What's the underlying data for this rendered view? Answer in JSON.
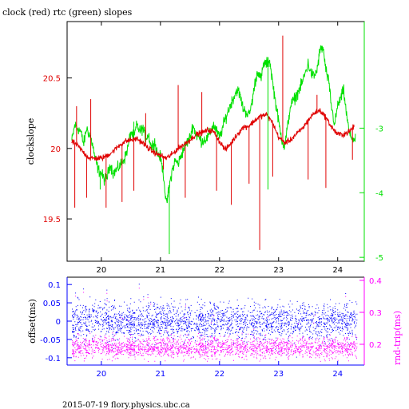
{
  "title": "clock (red) rtc (green) slopes",
  "footer": "2015-07-19 flory.physics.ubc.ca",
  "colors": {
    "clock": "#e00000",
    "rtc": "#00e000",
    "offset": "#0000ff",
    "rndtrip": "#ff00ff",
    "frame": "#000000"
  },
  "chart_data": [
    {
      "type": "line",
      "ylabel": "clockslope",
      "right_axis": "rtc",
      "xlim": [
        19.42,
        24.45
      ],
      "ylim": [
        19.2,
        20.9
      ],
      "y2lim": [
        -5.06,
        -1.35
      ],
      "x_ticks": [
        "20",
        "21",
        "22",
        "23",
        "24"
      ],
      "y_ticks": [
        "19.5",
        "20",
        "20.5"
      ],
      "y2_ticks": [
        "-5",
        "-4",
        "-3"
      ],
      "series": [
        {
          "name": "clock",
          "axis": "left",
          "points": [
            [
              19.5,
              20.05
            ],
            [
              19.6,
              20.02
            ],
            [
              19.7,
              19.97
            ],
            [
              19.8,
              19.93
            ],
            [
              19.9,
              19.93
            ],
            [
              20.0,
              19.93
            ],
            [
              20.1,
              19.95
            ],
            [
              20.2,
              19.98
            ],
            [
              20.3,
              20.02
            ],
            [
              20.4,
              20.05
            ],
            [
              20.5,
              20.06
            ],
            [
              20.6,
              20.07
            ],
            [
              20.7,
              20.04
            ],
            [
              20.8,
              20.0
            ],
            [
              20.9,
              19.97
            ],
            [
              21.0,
              19.95
            ],
            [
              21.1,
              19.93
            ],
            [
              21.2,
              19.96
            ],
            [
              21.3,
              20.0
            ],
            [
              21.4,
              20.03
            ],
            [
              21.5,
              20.06
            ],
            [
              21.6,
              20.1
            ],
            [
              21.7,
              20.11
            ],
            [
              21.8,
              20.13
            ],
            [
              21.9,
              20.12
            ],
            [
              22.0,
              20.05
            ],
            [
              22.1,
              19.99
            ],
            [
              22.2,
              20.04
            ],
            [
              22.3,
              20.1
            ],
            [
              22.4,
              20.15
            ],
            [
              22.5,
              20.16
            ],
            [
              22.6,
              20.2
            ],
            [
              22.7,
              20.23
            ],
            [
              22.8,
              20.24
            ],
            [
              22.9,
              20.18
            ],
            [
              23.0,
              20.08
            ],
            [
              23.1,
              20.04
            ],
            [
              23.2,
              20.06
            ],
            [
              23.3,
              20.1
            ],
            [
              23.4,
              20.14
            ],
            [
              23.5,
              20.2
            ],
            [
              23.6,
              20.25
            ],
            [
              23.7,
              20.27
            ],
            [
              23.8,
              20.22
            ],
            [
              23.9,
              20.15
            ],
            [
              24.0,
              20.1
            ],
            [
              24.1,
              20.1
            ],
            [
              24.2,
              20.12
            ],
            [
              24.28,
              20.16
            ]
          ]
        },
        {
          "name": "rtc",
          "axis": "right",
          "points": [
            [
              19.5,
              -3.2
            ],
            [
              19.55,
              -2.95
            ],
            [
              19.6,
              -3.0
            ],
            [
              19.65,
              -3.05
            ],
            [
              19.7,
              -3.25
            ],
            [
              19.75,
              -3.0
            ],
            [
              19.8,
              -3.1
            ],
            [
              19.85,
              -3.25
            ],
            [
              19.9,
              -3.5
            ],
            [
              19.95,
              -3.65
            ],
            [
              20.0,
              -3.7
            ],
            [
              20.05,
              -3.8
            ],
            [
              20.1,
              -3.75
            ],
            [
              20.15,
              -3.55
            ],
            [
              20.2,
              -3.7
            ],
            [
              20.3,
              -3.6
            ],
            [
              20.4,
              -3.45
            ],
            [
              20.45,
              -3.3
            ],
            [
              20.5,
              -3.05
            ],
            [
              20.55,
              -3.15
            ],
            [
              20.6,
              -2.95
            ],
            [
              20.65,
              -3.05
            ],
            [
              20.7,
              -3.0
            ],
            [
              20.75,
              -3.15
            ],
            [
              20.8,
              -3.1
            ],
            [
              20.85,
              -3.3
            ],
            [
              20.9,
              -3.2
            ],
            [
              20.95,
              -3.4
            ],
            [
              21.0,
              -3.45
            ],
            [
              21.05,
              -3.7
            ],
            [
              21.1,
              -4.2
            ],
            [
              21.15,
              -3.9
            ],
            [
              21.2,
              -3.65
            ],
            [
              21.25,
              -3.5
            ],
            [
              21.3,
              -3.55
            ],
            [
              21.4,
              -3.3
            ],
            [
              21.5,
              -3.15
            ],
            [
              21.55,
              -2.95
            ],
            [
              21.6,
              -3.1
            ],
            [
              21.7,
              -3.2
            ],
            [
              21.8,
              -3.15
            ],
            [
              21.9,
              -2.95
            ],
            [
              22.0,
              -3.15
            ],
            [
              22.1,
              -2.85
            ],
            [
              22.2,
              -2.6
            ],
            [
              22.3,
              -2.4
            ],
            [
              22.35,
              -2.5
            ],
            [
              22.4,
              -2.7
            ],
            [
              22.5,
              -2.8
            ],
            [
              22.55,
              -2.6
            ],
            [
              22.6,
              -2.3
            ],
            [
              22.65,
              -2.1
            ],
            [
              22.7,
              -2.25
            ],
            [
              22.75,
              -2.0
            ],
            [
              22.8,
              -2.0
            ],
            [
              22.85,
              -1.95
            ],
            [
              22.9,
              -2.3
            ],
            [
              22.95,
              -2.6
            ],
            [
              23.0,
              -2.9
            ],
            [
              23.05,
              -3.15
            ],
            [
              23.1,
              -3.3
            ],
            [
              23.15,
              -3.0
            ],
            [
              23.2,
              -2.65
            ],
            [
              23.3,
              -2.5
            ],
            [
              23.4,
              -2.3
            ],
            [
              23.5,
              -2.0
            ],
            [
              23.55,
              -2.15
            ],
            [
              23.6,
              -2.2
            ],
            [
              23.65,
              -2.1
            ],
            [
              23.7,
              -1.8
            ],
            [
              23.75,
              -1.75
            ],
            [
              23.8,
              -2.1
            ],
            [
              23.85,
              -2.3
            ],
            [
              23.9,
              -2.7
            ],
            [
              23.95,
              -2.95
            ],
            [
              24.0,
              -2.65
            ],
            [
              24.05,
              -2.55
            ],
            [
              24.1,
              -2.4
            ],
            [
              24.15,
              -2.8
            ],
            [
              24.2,
              -3.1
            ],
            [
              24.25,
              -3.15
            ],
            [
              24.3,
              -3.2
            ]
          ]
        }
      ],
      "spikes": [
        {
          "series": "clock",
          "x": 19.55,
          "y": 19.58
        },
        {
          "series": "clock",
          "x": 19.58,
          "y": 20.3
        },
        {
          "series": "clock",
          "x": 19.75,
          "y": 19.65
        },
        {
          "series": "clock",
          "x": 19.82,
          "y": 20.35
        },
        {
          "series": "clock",
          "x": 20.08,
          "y": 19.58
        },
        {
          "series": "clock",
          "x": 20.35,
          "y": 19.62
        },
        {
          "series": "clock",
          "x": 20.55,
          "y": 19.7
        },
        {
          "series": "clock",
          "x": 20.75,
          "y": 20.25
        },
        {
          "series": "clock",
          "x": 21.05,
          "y": 19.85
        },
        {
          "series": "clock",
          "x": 21.3,
          "y": 20.45
        },
        {
          "series": "clock",
          "x": 21.42,
          "y": 19.65
        },
        {
          "series": "clock",
          "x": 21.7,
          "y": 20.4
        },
        {
          "series": "clock",
          "x": 21.95,
          "y": 19.7
        },
        {
          "series": "clock",
          "x": 22.2,
          "y": 19.6
        },
        {
          "series": "clock",
          "x": 22.5,
          "y": 19.75
        },
        {
          "series": "clock",
          "x": 22.68,
          "y": 19.28
        },
        {
          "series": "clock",
          "x": 22.9,
          "y": 19.8
        },
        {
          "series": "clock",
          "x": 23.07,
          "y": 20.8
        },
        {
          "series": "clock",
          "x": 23.5,
          "y": 19.78
        },
        {
          "series": "clock",
          "x": 23.65,
          "y": 20.38
        },
        {
          "series": "clock",
          "x": 23.8,
          "y": 19.72
        },
        {
          "series": "clock",
          "x": 24.25,
          "y": 19.92
        },
        {
          "series": "rtc",
          "x": 21.15,
          "y": -4.95
        },
        {
          "series": "rtc",
          "x": 19.98,
          "y": -3.95
        },
        {
          "series": "rtc",
          "x": 22.82,
          "y": -3.95
        },
        {
          "series": "rtc",
          "x": 20.55,
          "y": -2.9
        }
      ]
    },
    {
      "type": "scatter",
      "ylabel": "offset(ms)",
      "y2label": "rnd-trip(ms)",
      "xlim": [
        19.42,
        24.45
      ],
      "ylim": [
        -0.12,
        0.12
      ],
      "y2lim": [
        0.135,
        0.41
      ],
      "x_ticks": [
        "20",
        "21",
        "22",
        "23",
        "24"
      ],
      "y_ticks": [
        "-0.1",
        "-0.05",
        "0",
        "0.05",
        "0.1"
      ],
      "y2_ticks": [
        "0.2",
        "0.3",
        "0.4"
      ],
      "series": [
        {
          "name": "offset",
          "axis": "left",
          "x_range": [
            19.5,
            24.32
          ],
          "center": 0.0,
          "band": [
            -0.03,
            0.03
          ],
          "outliers": [
            -0.11,
            0.115
          ]
        },
        {
          "name": "rnd-trip",
          "axis": "right",
          "x_range": [
            19.5,
            24.32
          ],
          "center": 0.19,
          "band": [
            0.17,
            0.21
          ],
          "outliers": [
            0.16,
            0.39
          ]
        }
      ]
    }
  ]
}
